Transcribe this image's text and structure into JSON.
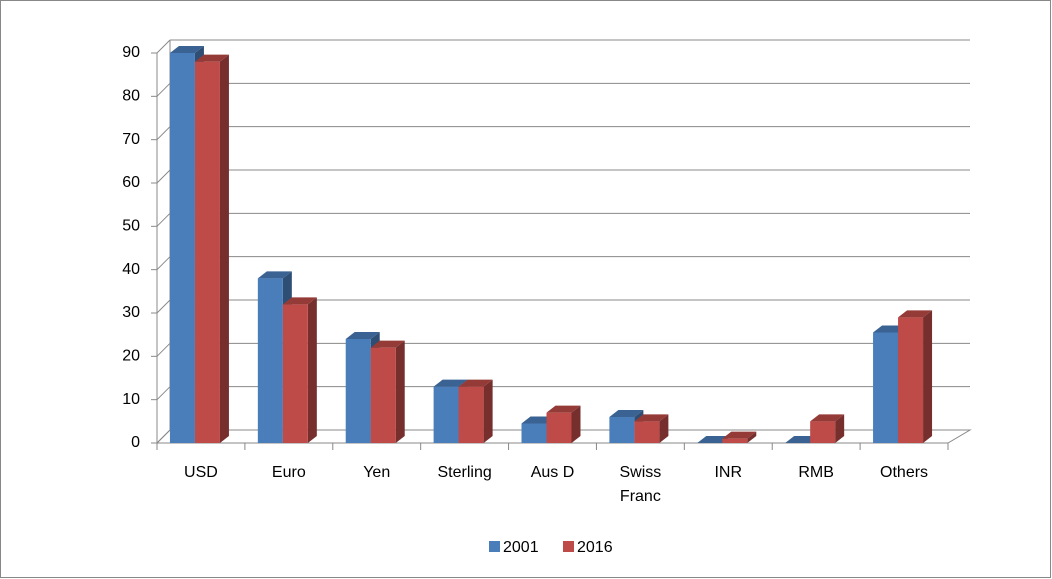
{
  "chart_data": {
    "type": "bar3d",
    "categories": [
      "USD",
      "Euro",
      "Yen",
      "Sterling",
      "Aus D",
      "Swiss Franc",
      "INR",
      "RMB",
      "Others"
    ],
    "series": [
      {
        "name": "2001",
        "color": "#4a7ebb",
        "values": [
          90,
          38,
          24,
          13,
          4.5,
          6,
          0,
          0,
          25.5
        ]
      },
      {
        "name": "2016",
        "color": "#be4b48",
        "values": [
          88,
          32,
          22,
          13,
          7,
          5,
          1,
          5,
          29
        ]
      }
    ],
    "ylim": [
      0,
      90
    ],
    "yticks": [
      0,
      10,
      20,
      30,
      40,
      50,
      60,
      70,
      80,
      90
    ],
    "grid": true,
    "legend": "bottom"
  }
}
